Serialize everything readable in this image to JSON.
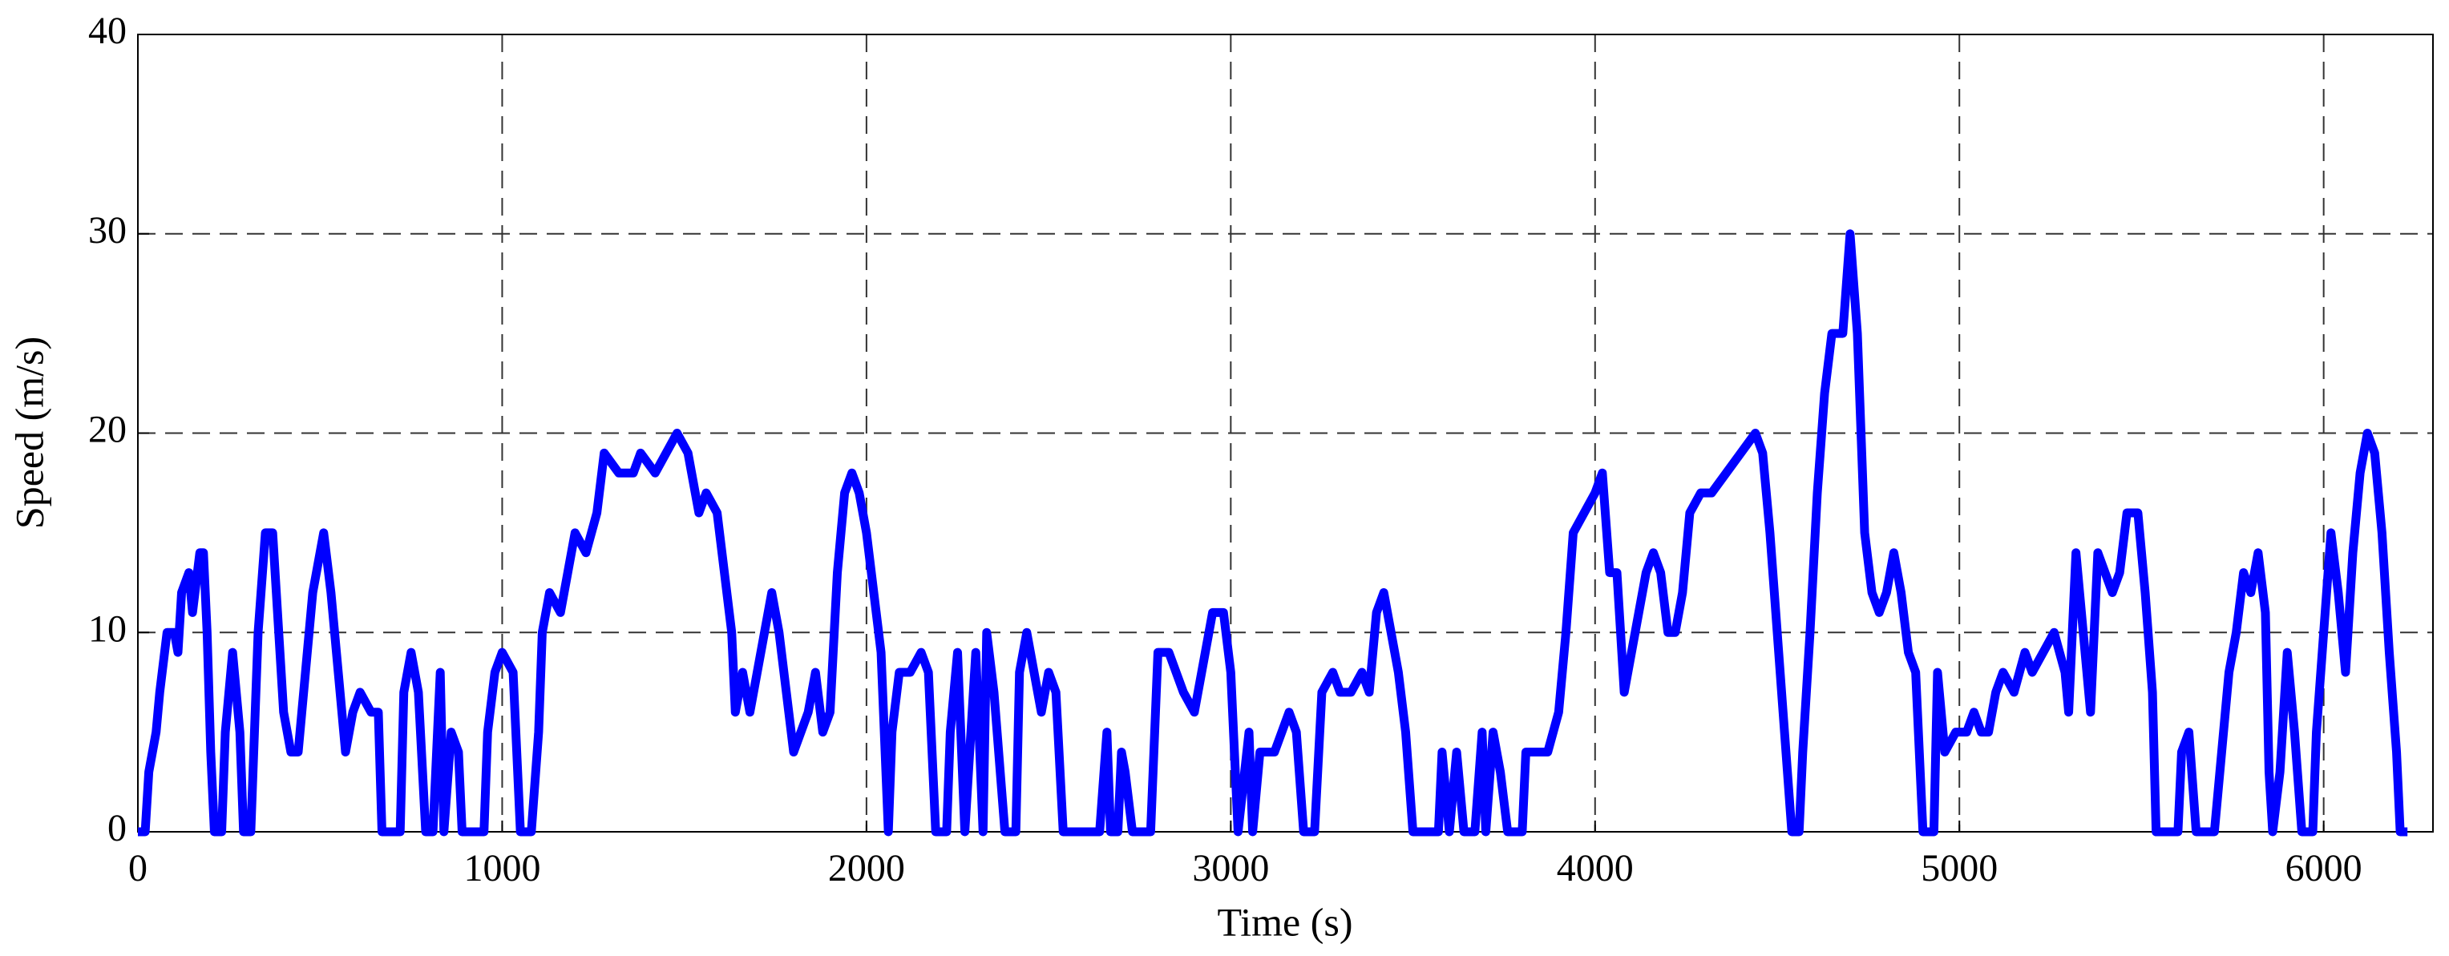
{
  "chart_data": {
    "type": "line",
    "xlabel": "Time (s)",
    "ylabel": "Speed (m/s)",
    "x": [
      0,
      20,
      30,
      50,
      60,
      80,
      100,
      110,
      120,
      140,
      150,
      170,
      180,
      190,
      200,
      210,
      230,
      240,
      260,
      280,
      290,
      310,
      330,
      350,
      370,
      380,
      400,
      420,
      440,
      460,
      480,
      500,
      510,
      530,
      550,
      570,
      590,
      610,
      640,
      660,
      670,
      720,
      730,
      750,
      770,
      790,
      810,
      830,
      840,
      860,
      880,
      890,
      950,
      960,
      980,
      1000,
      1030,
      1050,
      1080,
      1100,
      1110,
      1130,
      1160,
      1180,
      1200,
      1230,
      1260,
      1280,
      1320,
      1360,
      1380,
      1420,
      1450,
      1480,
      1510,
      1540,
      1560,
      1590,
      1610,
      1630,
      1640,
      1660,
      1680,
      1700,
      1720,
      1740,
      1760,
      1780,
      1800,
      1820,
      1840,
      1860,
      1880,
      1900,
      1920,
      1940,
      1960,
      1980,
      2000,
      2020,
      2040,
      2060,
      2070,
      2090,
      2120,
      2150,
      2170,
      2190,
      2220,
      2230,
      2250,
      2270,
      2300,
      2320,
      2330,
      2350,
      2380,
      2410,
      2420,
      2440,
      2460,
      2480,
      2500,
      2520,
      2540,
      2640,
      2660,
      2670,
      2690,
      2700,
      2710,
      2730,
      2780,
      2800,
      2830,
      2870,
      2900,
      2920,
      2950,
      2980,
      3000,
      3020,
      3050,
      3060,
      3080,
      3120,
      3140,
      3160,
      3180,
      3200,
      3230,
      3250,
      3280,
      3300,
      3330,
      3360,
      3380,
      3400,
      3420,
      3440,
      3460,
      3480,
      3500,
      3570,
      3580,
      3600,
      3620,
      3640,
      3670,
      3690,
      3700,
      3720,
      3740,
      3760,
      3800,
      3810,
      3840,
      3870,
      3900,
      3920,
      3940,
      3970,
      4000,
      4020,
      4040,
      4060,
      4080,
      4100,
      4120,
      4140,
      4160,
      4180,
      4200,
      4220,
      4240,
      4260,
      4290,
      4320,
      4360,
      4400,
      4440,
      4460,
      4480,
      4500,
      4520,
      4540,
      4560,
      4570,
      4590,
      4610,
      4630,
      4650,
      4680,
      4700,
      4720,
      4740,
      4760,
      4780,
      4800,
      4820,
      4840,
      4860,
      4880,
      4900,
      4930,
      4940,
      4960,
      4990,
      5020,
      5040,
      5060,
      5080,
      5100,
      5120,
      5150,
      5180,
      5200,
      5230,
      5260,
      5290,
      5300,
      5320,
      5340,
      5360,
      5380,
      5400,
      5420,
      5440,
      5460,
      5490,
      5510,
      5530,
      5540,
      5600,
      5610,
      5630,
      5650,
      5700,
      5720,
      5740,
      5760,
      5780,
      5800,
      5820,
      5840,
      5850,
      5860,
      5880,
      5900,
      5920,
      5940,
      5970,
      5980,
      6000,
      6020,
      6040,
      6060,
      6080,
      6100,
      6120,
      6140,
      6160,
      6180,
      6200,
      6210,
      6230
    ],
    "series": [
      {
        "color": "#0000ff",
        "values": [
          0,
          0,
          3,
          5,
          7,
          10,
          10,
          9,
          12,
          13,
          11,
          14,
          14,
          10,
          4,
          0,
          0,
          5,
          9,
          5,
          0,
          0,
          10,
          15,
          15,
          12,
          6,
          4,
          4,
          8,
          12,
          14,
          15,
          12,
          8,
          4,
          6,
          7,
          6,
          6,
          0,
          0,
          7,
          9,
          7,
          0,
          0,
          8,
          0,
          5,
          4,
          0,
          0,
          5,
          8,
          9,
          8,
          0,
          0,
          5,
          10,
          12,
          11,
          13,
          15,
          14,
          16,
          19,
          18,
          18,
          19,
          18,
          19,
          20,
          19,
          16,
          17,
          16,
          13,
          10,
          6,
          8,
          6,
          8,
          10,
          12,
          10,
          7,
          4,
          5,
          6,
          8,
          5,
          6,
          13,
          17,
          18,
          17,
          15,
          12,
          9,
          0,
          5,
          8,
          8,
          9,
          8,
          0,
          0,
          5,
          9,
          0,
          9,
          0,
          10,
          7,
          0,
          0,
          8,
          10,
          8,
          6,
          8,
          7,
          0,
          0,
          5,
          0,
          0,
          4,
          3,
          0,
          0,
          9,
          9,
          7,
          6,
          8,
          11,
          11,
          8,
          0,
          5,
          0,
          4,
          4,
          5,
          6,
          5,
          0,
          0,
          7,
          8,
          7,
          7,
          8,
          7,
          11,
          12,
          10,
          8,
          5,
          0,
          0,
          4,
          0,
          4,
          0,
          0,
          5,
          0,
          5,
          3,
          0,
          0,
          4,
          4,
          4,
          6,
          10,
          15,
          16,
          17,
          18,
          13,
          13,
          7,
          9,
          11,
          13,
          14,
          13,
          10,
          10,
          12,
          16,
          17,
          17,
          18,
          19,
          20,
          19,
          15,
          10,
          5,
          0,
          0,
          4,
          10,
          17,
          22,
          25,
          25,
          30,
          25,
          15,
          12,
          11,
          12,
          14,
          12,
          9,
          8,
          0,
          0,
          8,
          4,
          5,
          5,
          6,
          5,
          5,
          7,
          8,
          7,
          9,
          8,
          9,
          10,
          8,
          6,
          14,
          10,
          6,
          14,
          13,
          12,
          13,
          16,
          16,
          12,
          7,
          0,
          0,
          4,
          5,
          0,
          0,
          4,
          8,
          10,
          13,
          12,
          14,
          11,
          3,
          0,
          3,
          9,
          5,
          0,
          0,
          5,
          10,
          15,
          12,
          8,
          14,
          18,
          20,
          19,
          15,
          9,
          4,
          0,
          0
        ]
      }
    ],
    "xlim": [
      0,
      6300
    ],
    "xticks": [
      0,
      1000,
      2000,
      3000,
      4000,
      5000,
      6000
    ],
    "ylim": [
      0,
      40
    ],
    "yticks": [
      0,
      10,
      20,
      30,
      40
    ],
    "grid": true
  }
}
